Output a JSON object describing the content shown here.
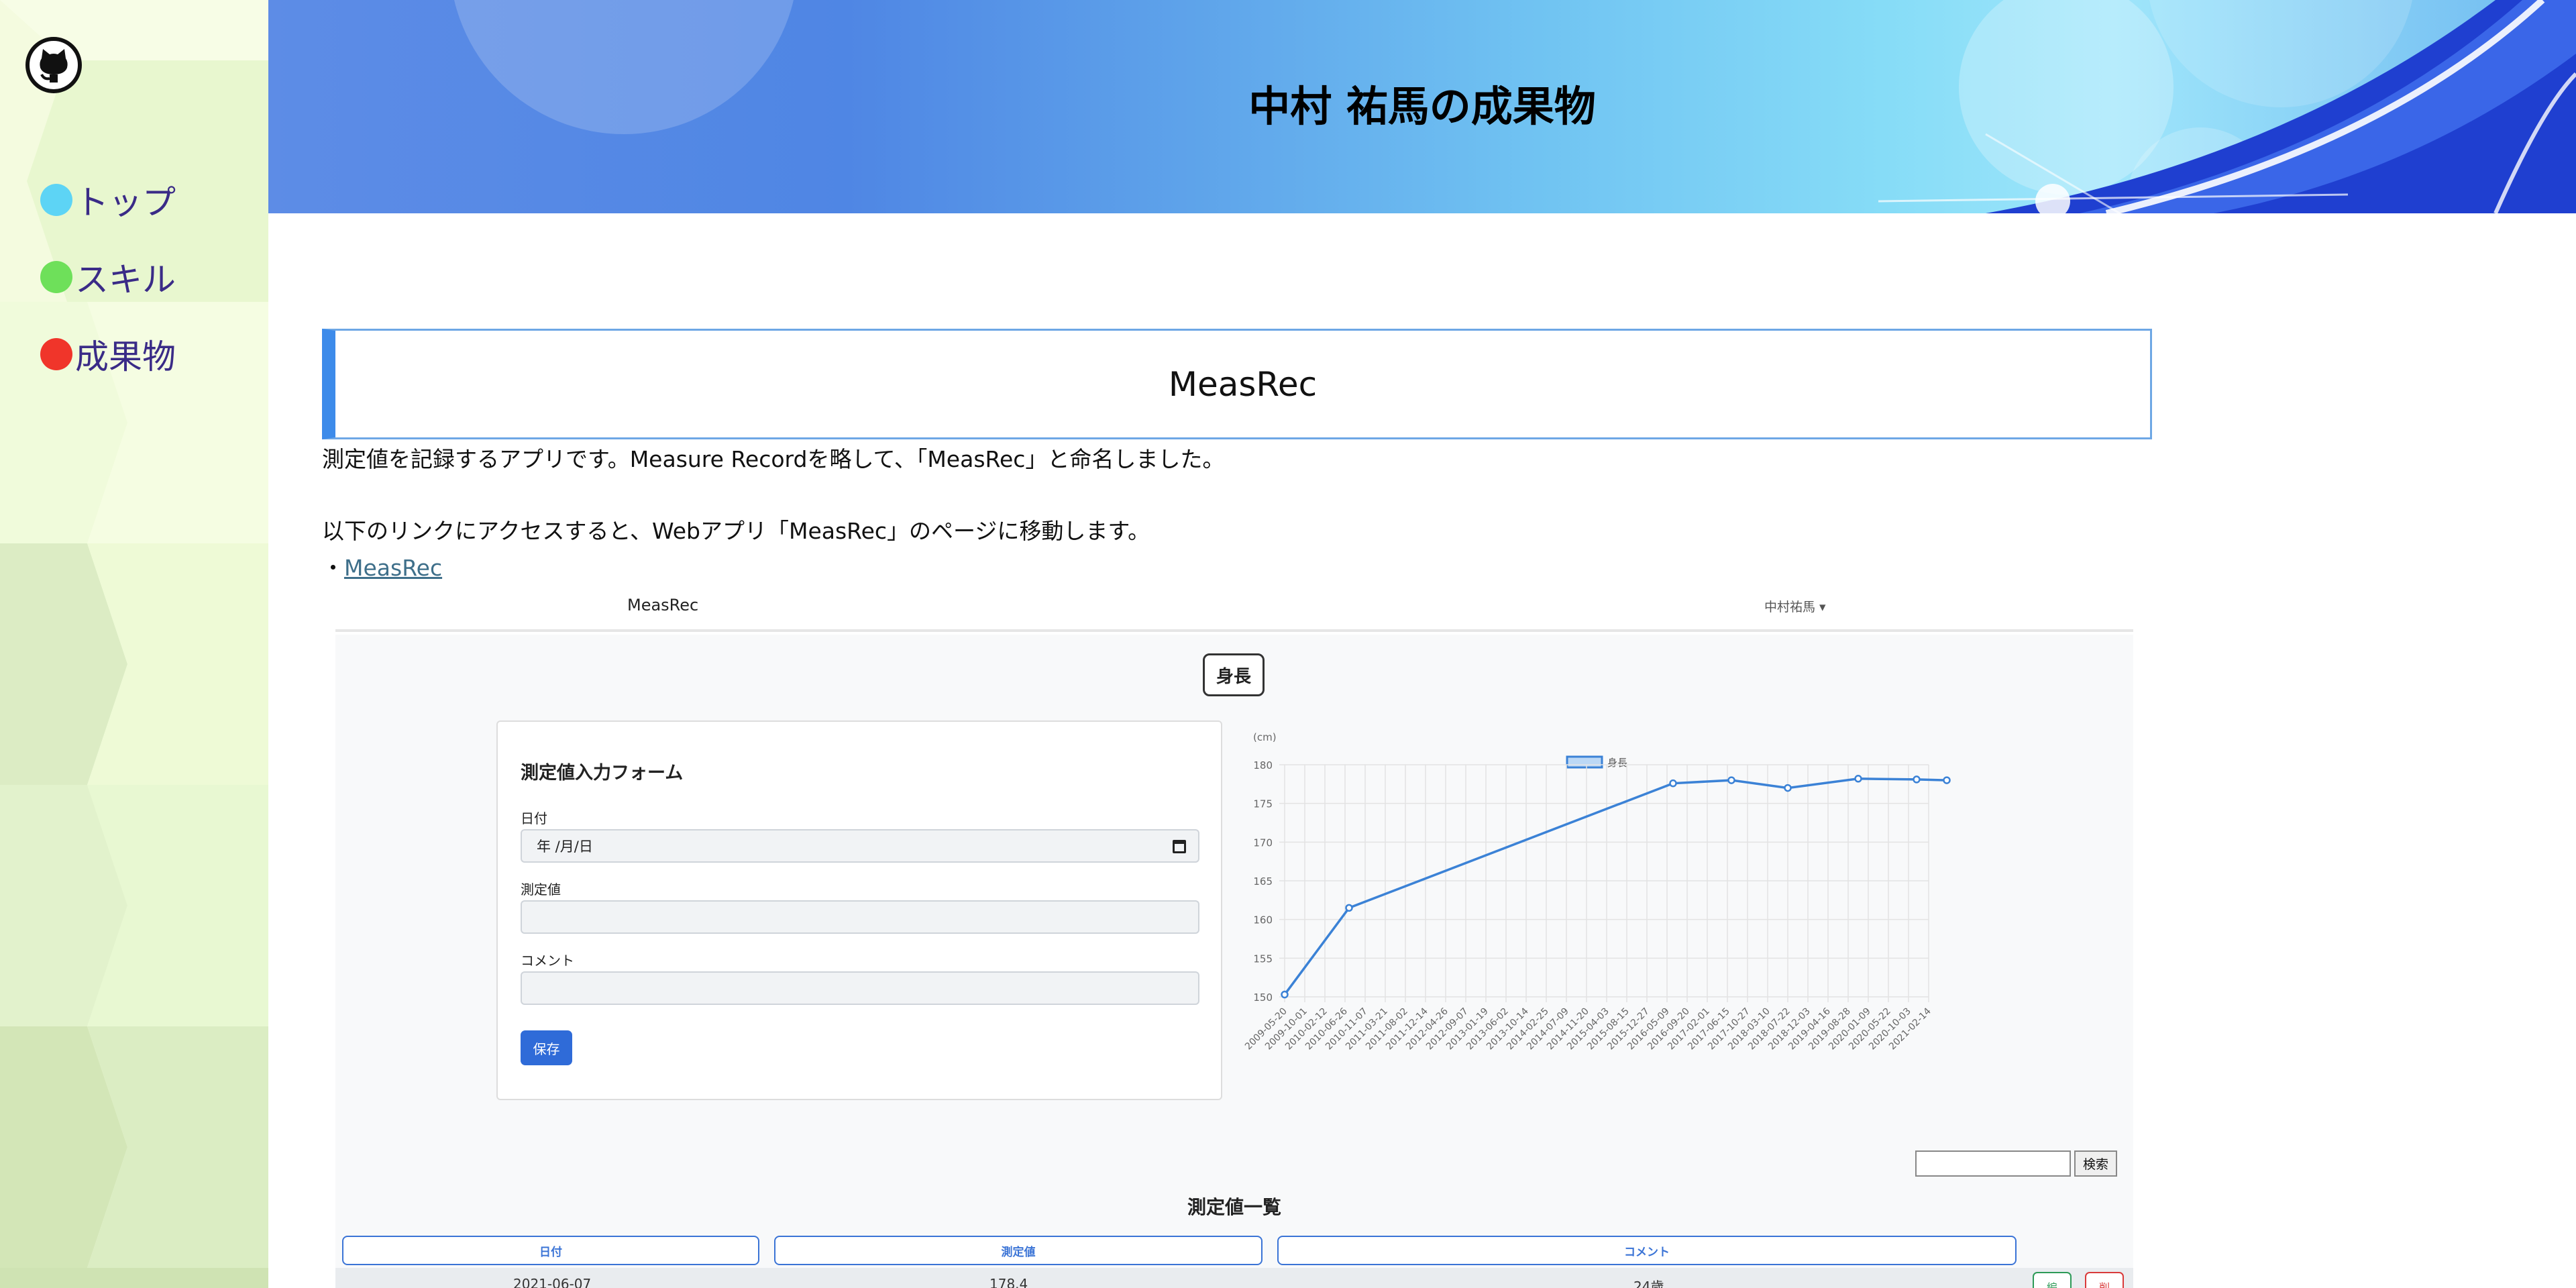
{
  "sidebar": {
    "logo_icon": "github-icon",
    "items": [
      {
        "label": "トップ",
        "color": "#5dd4f5"
      },
      {
        "label": "スキル",
        "color": "#6ee05a"
      },
      {
        "label": "成果物",
        "color": "#f0352a"
      }
    ]
  },
  "banner": {
    "title": "中村 祐馬の成果物"
  },
  "section": {
    "heading": "MeasRec",
    "description": "測定値を記録するアプリです。Measure Recordを略して、「MeasRec」と命名しました。",
    "link_intro": "以下のリンクにアクセスすると、Webアプリ「MeasRec」のページに移動します。",
    "link_prefix": "・",
    "link_label": "MeasRec"
  },
  "app": {
    "brand": "MeasRec",
    "user": "中村祐馬 ▾",
    "tag_button": "身長",
    "form": {
      "title": "測定値入力フォーム",
      "date_label": "日付",
      "date_placeholder": "年 /月/日",
      "value_label": "測定値",
      "comment_label": "コメント",
      "save_label": "保存"
    },
    "search_button": "検索",
    "list_title": "測定値一覧",
    "columns": [
      "日付",
      "測定値",
      "コメント"
    ],
    "first_row": {
      "date": "2021-06-07",
      "value": "178.4",
      "comment": "24歳",
      "edit_label": "編",
      "delete_label": "削"
    }
  },
  "chart_data": {
    "type": "line",
    "unit_label": "(cm)",
    "legend": "身長",
    "ylim": [
      150,
      180
    ],
    "yticks": [
      150,
      155,
      160,
      165,
      170,
      175,
      180
    ],
    "categories": [
      "2009-05-20",
      "2009-10-01",
      "2010-02-12",
      "2010-06-26",
      "2010-11-07",
      "2011-03-21",
      "2011-08-02",
      "2011-12-14",
      "2012-04-26",
      "2012-09-07",
      "2013-01-19",
      "2013-06-02",
      "2013-10-14",
      "2014-02-25",
      "2014-07-09",
      "2014-11-20",
      "2015-04-03",
      "2015-08-15",
      "2015-12-27",
      "2016-05-09",
      "2016-09-20",
      "2017-02-01",
      "2017-06-15",
      "2017-10-27",
      "2018-03-10",
      "2018-07-22",
      "2018-12-03",
      "2019-04-16",
      "2019-08-28",
      "2020-01-09",
      "2020-05-22",
      "2020-10-03",
      "2021-02-14"
    ],
    "series": [
      {
        "name": "身長",
        "points": [
          {
            "x": 0,
            "y": 150.3
          },
          {
            "x": 3.2,
            "y": 161.5
          },
          {
            "x": 19.3,
            "y": 177.6
          },
          {
            "x": 22.2,
            "y": 178.0
          },
          {
            "x": 25.0,
            "y": 177.0
          },
          {
            "x": 28.5,
            "y": 178.2
          },
          {
            "x": 31.4,
            "y": 178.1
          },
          {
            "x": 32.9,
            "y": 178.0
          }
        ]
      }
    ]
  }
}
